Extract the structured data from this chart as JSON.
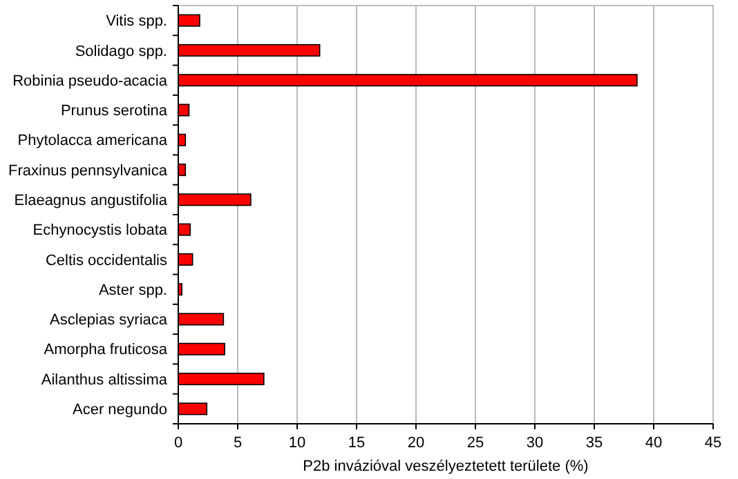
{
  "chart_data": {
    "type": "bar",
    "orientation": "horizontal",
    "xlabel": "P2b invázióval veszélyeztetett területe (%)",
    "categories": [
      "Vitis spp.",
      "Solidago spp.",
      "Robinia pseudo-acacia",
      "Prunus serotina",
      "Phytolacca americana",
      "Fraxinus pennsylvanica",
      "Elaeagnus angustifolia",
      "Echynocystis lobata",
      "Celtis occidentalis",
      "Aster spp.",
      "Asclepias syriaca",
      "Amorpha fruticosa",
      "Ailanthus altissima",
      "Acer negundo"
    ],
    "values": [
      1.8,
      11.9,
      38.6,
      0.9,
      0.6,
      0.6,
      6.1,
      1.0,
      1.2,
      0.3,
      3.8,
      3.9,
      7.2,
      2.4
    ],
    "color": "#ff0000",
    "xlim": [
      0,
      45
    ],
    "xticks": [
      0,
      5,
      10,
      15,
      20,
      25,
      30,
      35,
      40,
      45
    ],
    "grid": "x"
  }
}
